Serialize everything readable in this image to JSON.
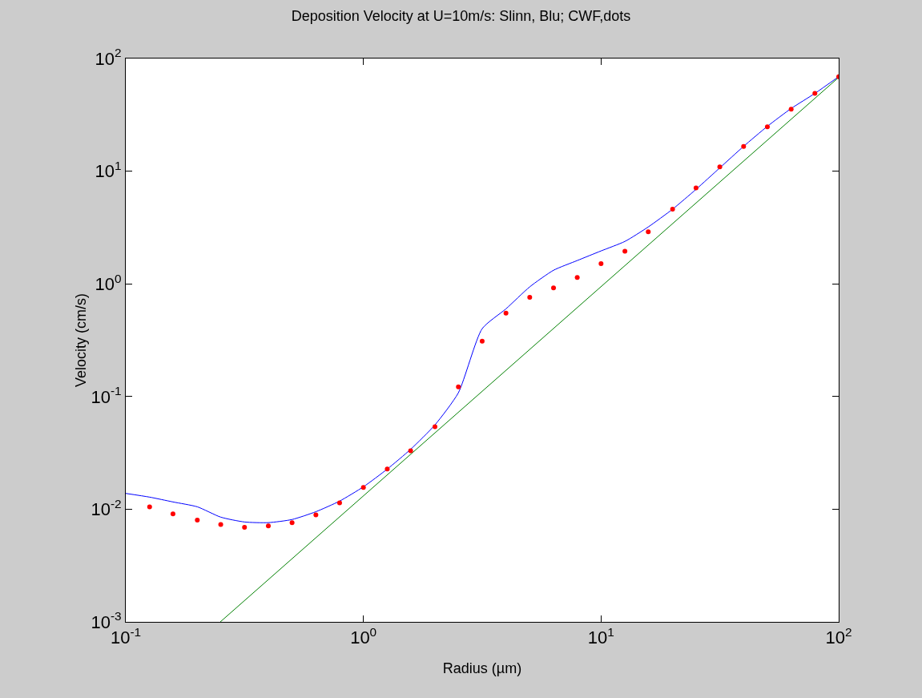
{
  "chart_data": {
    "type": "line",
    "title": "Deposition Velocity at U=10m/s: Slinn, Blu; CWF,dots",
    "xlabel": "Radius (µm)",
    "ylabel": "Velocity (cm/s)",
    "log": "xy",
    "grid": false,
    "xlim": [
      0.1,
      100
    ],
    "ylim": [
      0.001,
      100
    ],
    "xticks": [
      {
        "value": 0.1,
        "label": "10$^{-1}$"
      },
      {
        "value": 1,
        "label": "10$^{0}$"
      },
      {
        "value": 10,
        "label": "10$^{1}$"
      },
      {
        "value": 100,
        "label": "10$^{2}$"
      }
    ],
    "yticks": [
      {
        "value": 0.001,
        "label": "10$^{-3}$"
      },
      {
        "value": 0.01,
        "label": "10$^{-2}$"
      },
      {
        "value": 0.1,
        "label": "10$^{-1}$"
      },
      {
        "value": 1,
        "label": "10$^{0}$"
      },
      {
        "value": 10,
        "label": "10$^{1}$"
      },
      {
        "value": 100,
        "label": "10$^{2}$"
      }
    ],
    "series": [
      {
        "color": "#0000ff",
        "marker": "none",
        "line_style": "solid",
        "x": [
          0.1,
          0.126,
          0.158,
          0.2,
          0.251,
          0.316,
          0.398,
          0.501,
          0.631,
          0.794,
          1,
          1.26,
          1.58,
          2,
          2.51,
          3.16,
          3.98,
          5.01,
          6.31,
          7.94,
          10,
          12.6,
          15.8,
          20,
          25.1,
          31.6,
          39.8,
          50.1,
          63.1,
          79.4,
          100
        ],
        "values": [
          0.0138,
          0.0128,
          0.0116,
          0.0105,
          0.0085,
          0.0077,
          0.0076,
          0.0081,
          0.0095,
          0.0118,
          0.0158,
          0.0227,
          0.034,
          0.056,
          0.108,
          0.4,
          0.6,
          0.94,
          1.32,
          1.61,
          1.96,
          2.38,
          3.2,
          4.6,
          6.9,
          10.7,
          16.6,
          25,
          36,
          49,
          69
        ]
      },
      {
        "color": "#008000",
        "marker": "none",
        "line_style": "solid",
        "x": [
          0.25,
          100
        ],
        "values": [
          0.001,
          68
        ]
      },
      {
        "type": "scatter",
        "color": "#ff0000",
        "marker": "circle",
        "x": [
          0.126,
          0.158,
          0.2,
          0.251,
          0.316,
          0.398,
          0.501,
          0.631,
          0.794,
          1,
          1.26,
          1.58,
          2,
          2.51,
          3.16,
          3.98,
          5.01,
          6.31,
          7.94,
          10,
          12.6,
          15.8,
          20,
          25.1,
          31.6,
          39.8,
          50.1,
          63.1,
          79.4,
          100
        ],
        "values": [
          0.0105,
          0.0091,
          0.008,
          0.0073,
          0.0069,
          0.0071,
          0.0076,
          0.0089,
          0.0114,
          0.0156,
          0.0227,
          0.033,
          0.054,
          0.122,
          0.31,
          0.55,
          0.76,
          0.92,
          1.14,
          1.51,
          1.95,
          2.9,
          4.6,
          7.1,
          10.9,
          16.6,
          24.8,
          35.5,
          49,
          69
        ]
      }
    ]
  }
}
